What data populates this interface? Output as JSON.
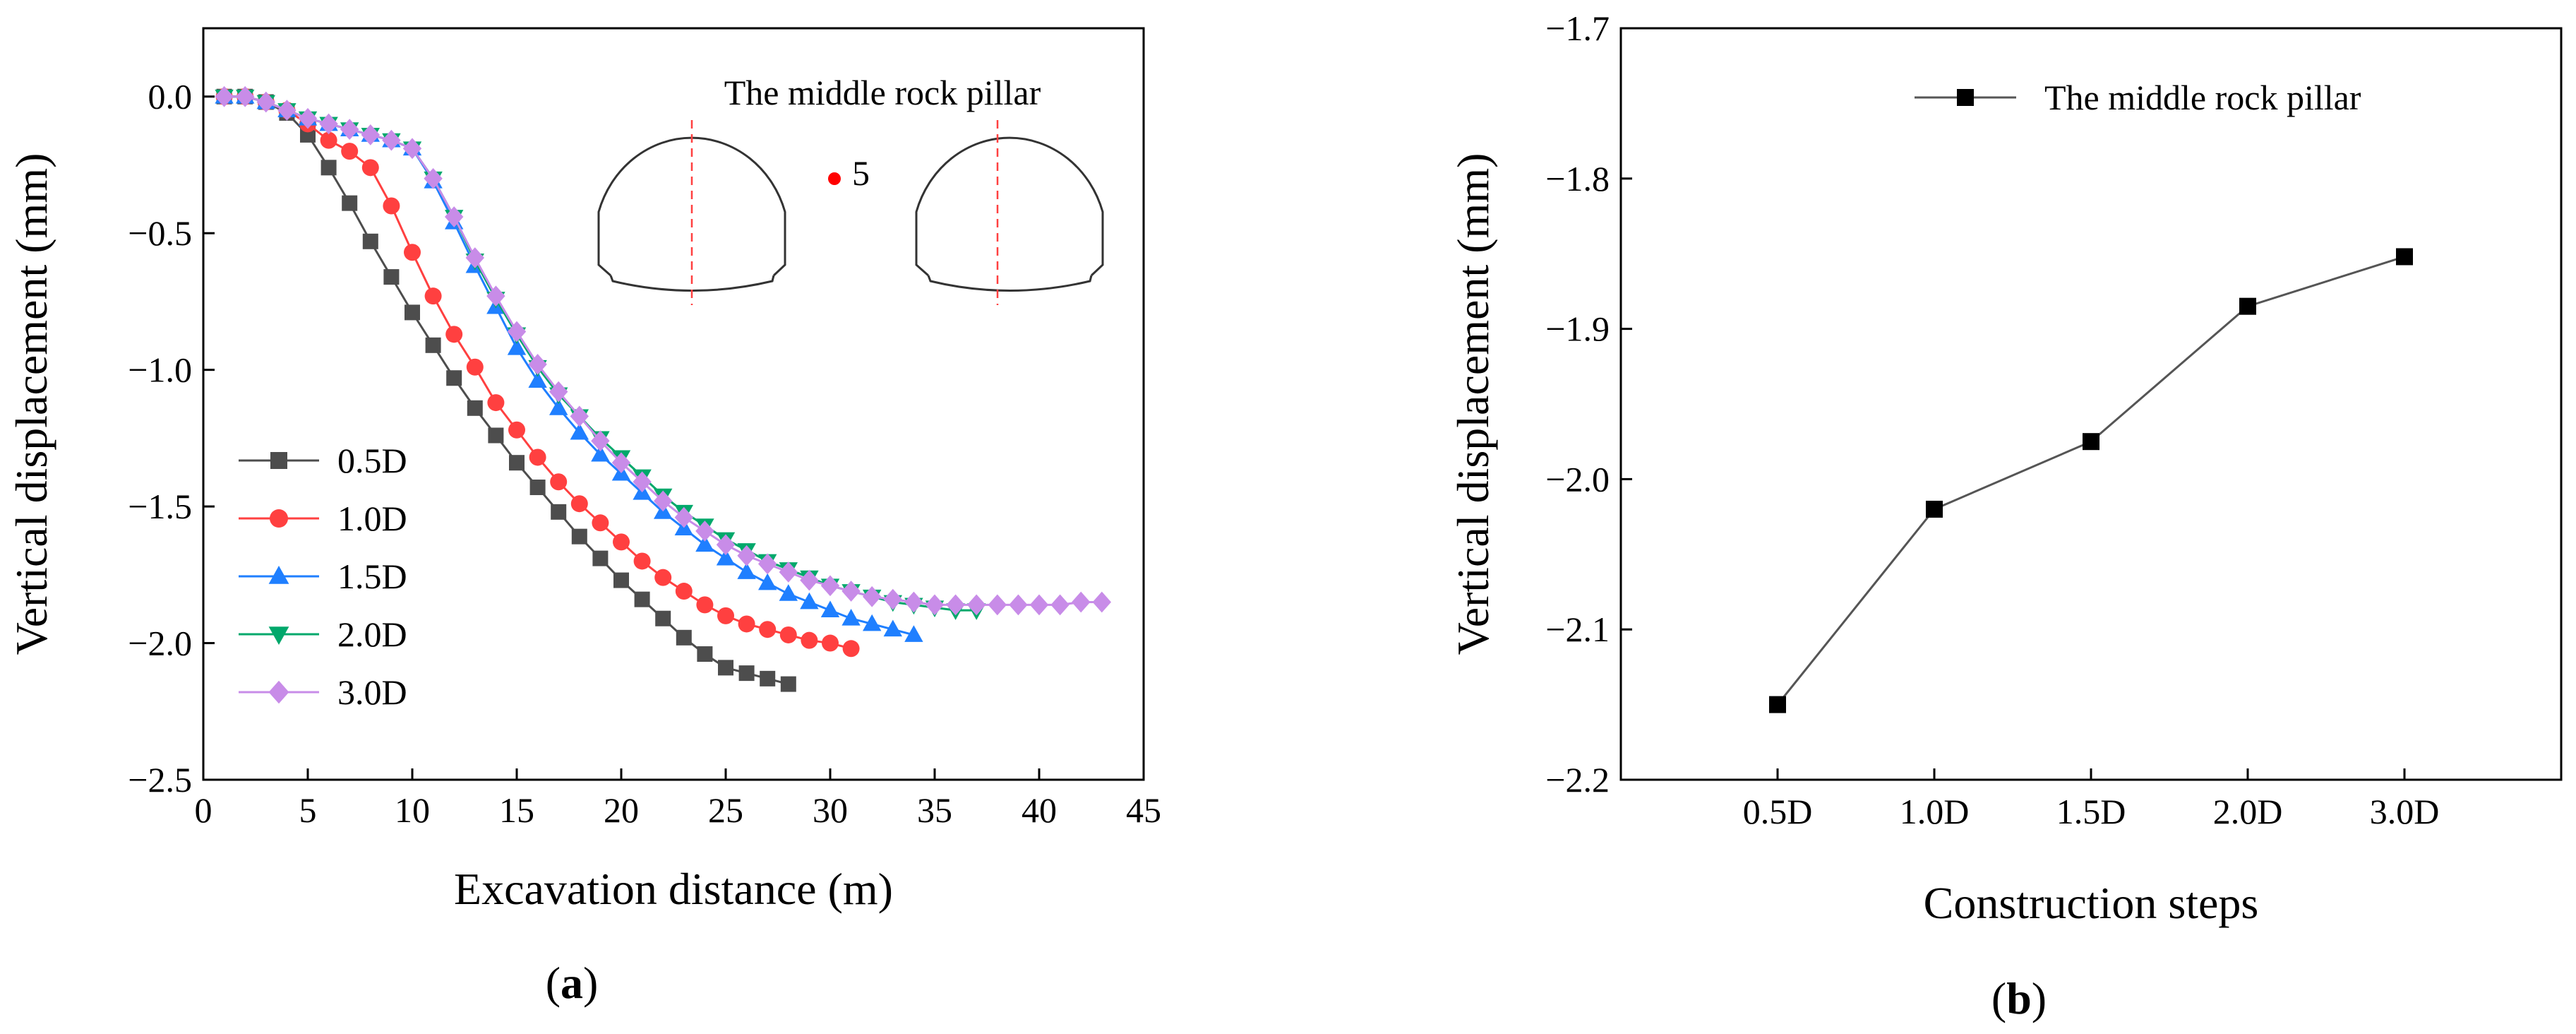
{
  "chart_data": [
    {
      "type": "line",
      "panel": "(a)",
      "panel_letter": "a",
      "xlabel": "Excavation distance (m)",
      "ylabel": "Vertical displacement (mm)",
      "xlim": [
        0,
        45
      ],
      "ylim": [
        -2.5,
        0.25
      ],
      "xticks": [
        0,
        5,
        10,
        15,
        20,
        25,
        30,
        35,
        40,
        45
      ],
      "yticks": [
        0.0,
        -0.5,
        -1.0,
        -1.5,
        -2.0,
        -2.5
      ],
      "ytick_labels": [
        "0.0",
        "−0.5",
        "−1.0",
        "−1.5",
        "−2.0",
        "−2.5"
      ],
      "grid": false,
      "legend_position": "lower-left",
      "inset": {
        "label": "The middle rock pillar",
        "point_label": "5",
        "point_color": "#ff0000",
        "description_icons": [
          "left-tunnel-cross-section-icon",
          "right-tunnel-cross-section-icon"
        ]
      },
      "series": [
        {
          "name": "0.5D",
          "color": "#4d4d4d",
          "marker": "square",
          "x": [
            1,
            2,
            3,
            4,
            5,
            6,
            7,
            8,
            9,
            10,
            11,
            12,
            13,
            14,
            15,
            16,
            17,
            18,
            19,
            20,
            21,
            22,
            23,
            24,
            25,
            26,
            27,
            28
          ],
          "y": [
            0.0,
            0.0,
            -0.02,
            -0.06,
            -0.14,
            -0.26,
            -0.39,
            -0.53,
            -0.66,
            -0.79,
            -0.91,
            -1.03,
            -1.14,
            -1.24,
            -1.34,
            -1.43,
            -1.52,
            -1.61,
            -1.69,
            -1.77,
            -1.84,
            -1.91,
            -1.98,
            -2.04,
            -2.09,
            -2.11,
            -2.13,
            -2.15
          ]
        },
        {
          "name": "1.0D",
          "color": "#ff4040",
          "marker": "circle",
          "x": [
            1,
            2,
            3,
            4,
            5,
            6,
            7,
            8,
            9,
            10,
            11,
            12,
            13,
            14,
            15,
            16,
            17,
            18,
            19,
            20,
            21,
            22,
            23,
            24,
            25,
            26,
            27,
            28,
            29,
            30,
            31
          ],
          "y": [
            0.0,
            0.0,
            -0.02,
            -0.05,
            -0.1,
            -0.16,
            -0.2,
            -0.26,
            -0.4,
            -0.57,
            -0.73,
            -0.87,
            -0.99,
            -1.12,
            -1.22,
            -1.32,
            -1.41,
            -1.49,
            -1.56,
            -1.63,
            -1.7,
            -1.76,
            -1.81,
            -1.86,
            -1.9,
            -1.93,
            -1.95,
            -1.97,
            -1.99,
            -2.0,
            -2.02
          ]
        },
        {
          "name": "1.5D",
          "color": "#1f7fff",
          "marker": "triangle-up",
          "x": [
            1,
            2,
            3,
            4,
            5,
            6,
            7,
            8,
            9,
            10,
            11,
            12,
            13,
            14,
            15,
            16,
            17,
            18,
            19,
            20,
            21,
            22,
            23,
            24,
            25,
            26,
            27,
            28,
            29,
            30,
            31,
            32,
            33,
            34
          ],
          "y": [
            0.0,
            0.0,
            -0.02,
            -0.05,
            -0.08,
            -0.1,
            -0.12,
            -0.14,
            -0.16,
            -0.19,
            -0.31,
            -0.46,
            -0.62,
            -0.77,
            -0.92,
            -1.04,
            -1.14,
            -1.23,
            -1.31,
            -1.38,
            -1.45,
            -1.52,
            -1.58,
            -1.64,
            -1.69,
            -1.74,
            -1.78,
            -1.82,
            -1.85,
            -1.88,
            -1.91,
            -1.93,
            -1.95,
            -1.97
          ]
        },
        {
          "name": "2.0D",
          "color": "#00a86b",
          "marker": "triangle-down",
          "x": [
            1,
            2,
            3,
            4,
            5,
            6,
            7,
            8,
            9,
            10,
            11,
            12,
            13,
            14,
            15,
            16,
            17,
            18,
            19,
            20,
            21,
            22,
            23,
            24,
            25,
            26,
            27,
            28,
            29,
            30,
            31,
            32,
            33,
            34,
            35,
            36,
            37
          ],
          "y": [
            0.0,
            0.0,
            -0.02,
            -0.05,
            -0.08,
            -0.1,
            -0.12,
            -0.14,
            -0.16,
            -0.19,
            -0.3,
            -0.44,
            -0.6,
            -0.74,
            -0.87,
            -0.99,
            -1.09,
            -1.17,
            -1.25,
            -1.32,
            -1.39,
            -1.46,
            -1.52,
            -1.57,
            -1.62,
            -1.66,
            -1.7,
            -1.73,
            -1.76,
            -1.79,
            -1.81,
            -1.83,
            -1.85,
            -1.86,
            -1.87,
            -1.88,
            -1.88
          ]
        },
        {
          "name": "3.0D",
          "color": "#c88ce8",
          "marker": "diamond",
          "x": [
            1,
            2,
            3,
            4,
            5,
            6,
            7,
            8,
            9,
            10,
            11,
            12,
            13,
            14,
            15,
            16,
            17,
            18,
            19,
            20,
            21,
            22,
            23,
            24,
            25,
            26,
            27,
            28,
            29,
            30,
            31,
            32,
            33,
            34,
            35,
            36,
            37,
            38,
            39,
            40,
            41,
            42,
            43
          ],
          "y": [
            0.0,
            0.0,
            -0.02,
            -0.05,
            -0.08,
            -0.1,
            -0.12,
            -0.14,
            -0.16,
            -0.19,
            -0.3,
            -0.44,
            -0.59,
            -0.73,
            -0.86,
            -0.98,
            -1.08,
            -1.17,
            -1.26,
            -1.34,
            -1.41,
            -1.48,
            -1.54,
            -1.59,
            -1.64,
            -1.68,
            -1.71,
            -1.74,
            -1.77,
            -1.79,
            -1.81,
            -1.83,
            -1.84,
            -1.85,
            -1.86,
            -1.86,
            -1.86,
            -1.86,
            -1.86,
            -1.86,
            -1.86,
            -1.85,
            -1.85
          ]
        }
      ]
    },
    {
      "type": "line",
      "panel": "(b)",
      "panel_letter": "b",
      "xlabel": "Construction steps",
      "ylabel": "Vertical displacement (mm)",
      "categories": [
        "0.5D",
        "1.0D",
        "1.5D",
        "2.0D",
        "3.0D"
      ],
      "ylim": [
        -2.2,
        -1.7
      ],
      "yticks": [
        -1.7,
        -1.8,
        -1.9,
        -2.0,
        -2.1,
        -2.2
      ],
      "ytick_labels": [
        "−1.7",
        "−1.8",
        "−1.9",
        "−2.0",
        "−2.1",
        "−2.2"
      ],
      "grid": false,
      "legend_position": "top-right",
      "series": [
        {
          "name": "The middle rock pillar",
          "color": "#000000",
          "line_color": "#555555",
          "marker": "square",
          "values": [
            -2.15,
            -2.02,
            -1.975,
            -1.885,
            -1.852
          ]
        }
      ]
    }
  ]
}
